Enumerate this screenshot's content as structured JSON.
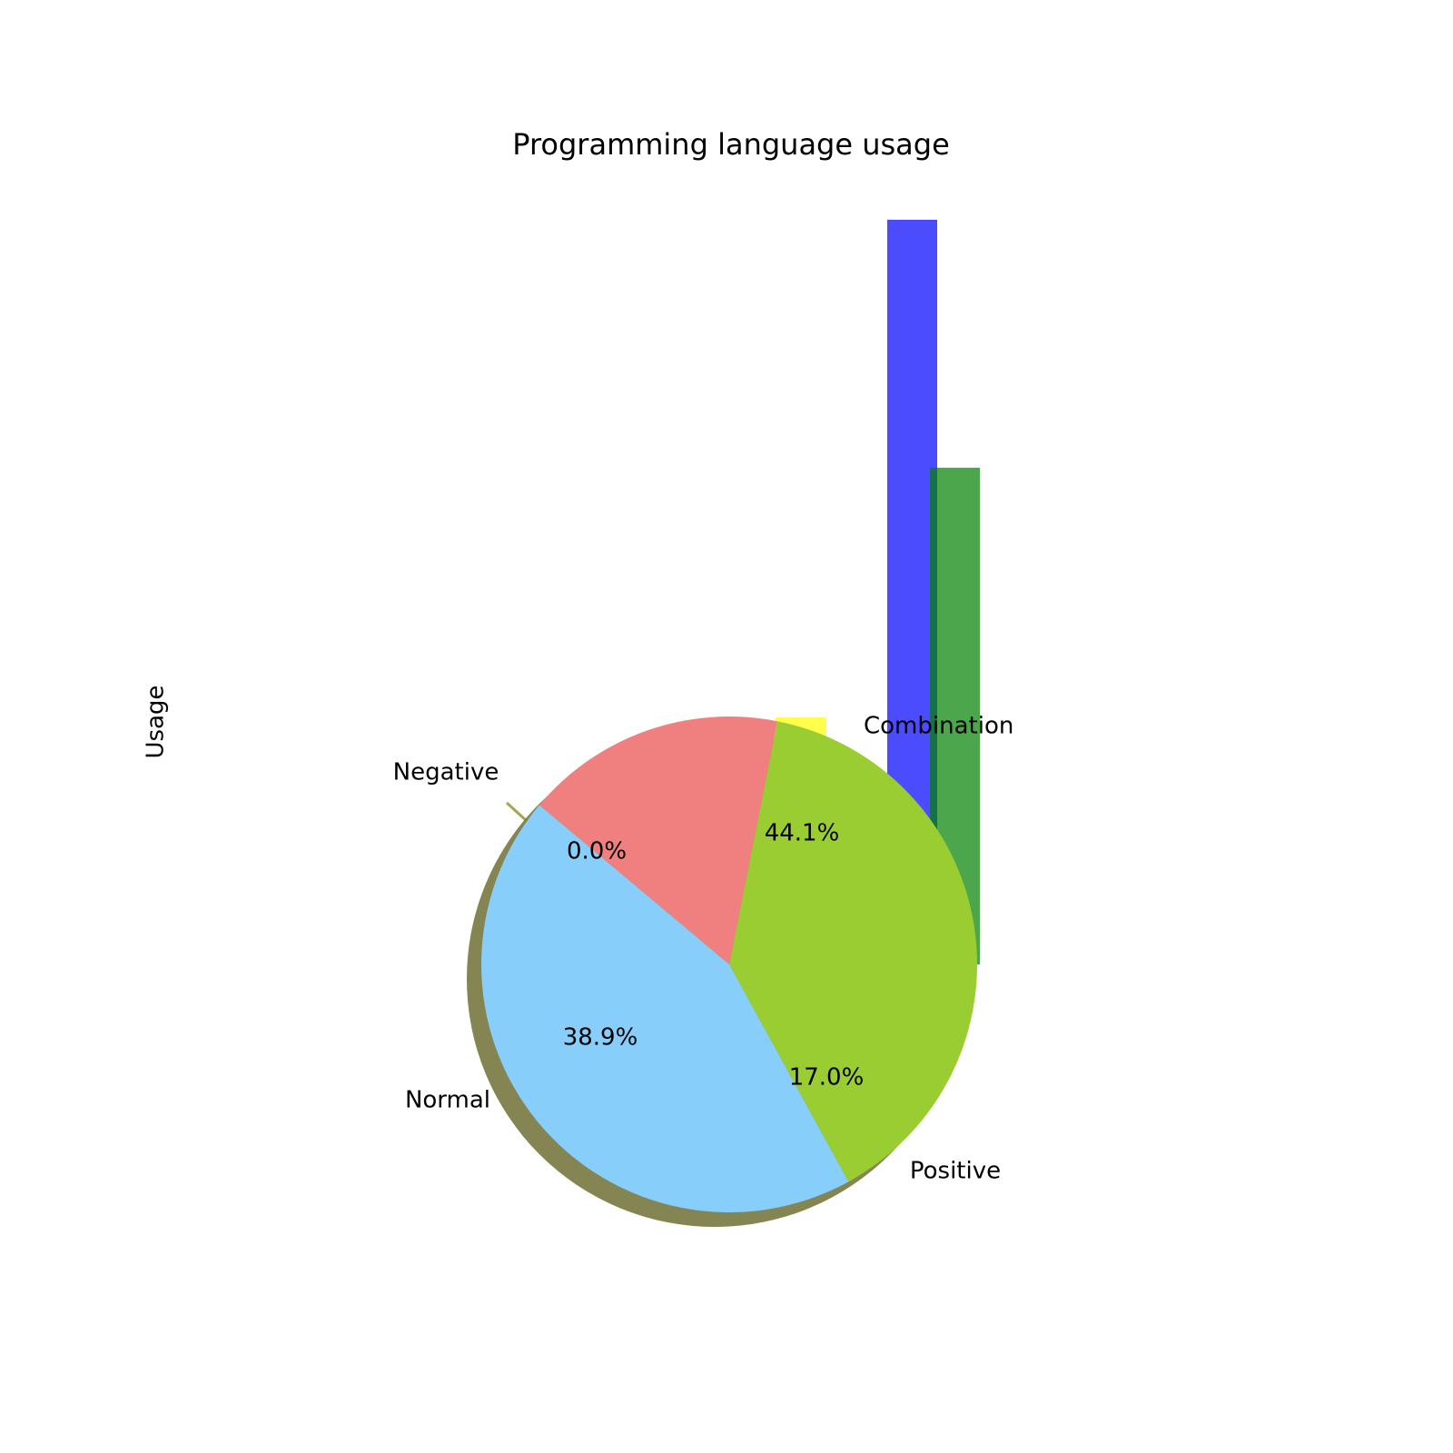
{
  "chart_data": {
    "type": "pie",
    "title": "Programming language usage",
    "ylabel": "Usage",
    "pie": {
      "slices": [
        {
          "label": "Negative",
          "value": 0.0,
          "pct_label": "0.0%",
          "color": "#808000"
        },
        {
          "label": "Positive",
          "value": 17.0,
          "pct_label": "17.0%",
          "color": "#F08080"
        },
        {
          "label": "Normal",
          "value": 38.9,
          "pct_label": "38.9%",
          "color": "#9ACD32"
        },
        {
          "label": "",
          "value": 44.1,
          "pct_label": "44.1%",
          "color": "#87CEFA"
        }
      ],
      "shadow": true
    },
    "bars": [
      {
        "color": "#0000FF",
        "alpha": 0.7,
        "relative_value": 1.0
      },
      {
        "color": "#008000",
        "alpha": 0.7,
        "relative_value": 0.667
      }
    ],
    "legend": {
      "placement": "center-right",
      "entries": [
        {
          "label": "Combination",
          "color": "#FFFF00",
          "alpha": 0.7
        }
      ]
    }
  }
}
